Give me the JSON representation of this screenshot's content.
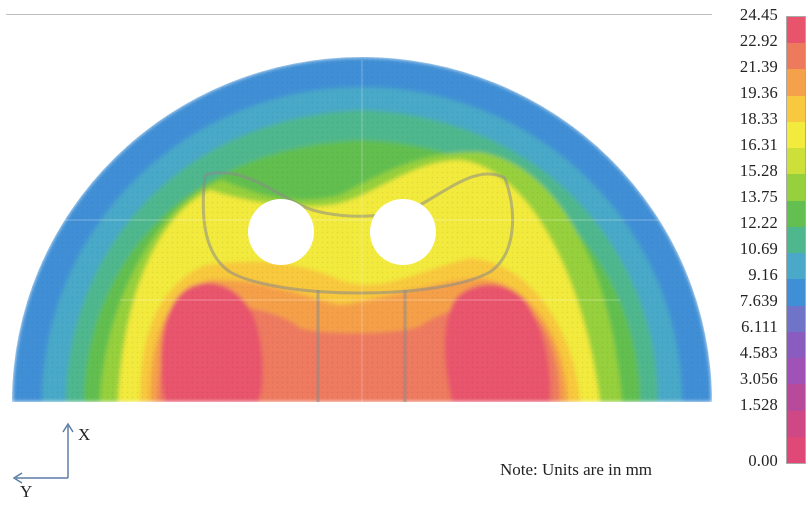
{
  "legend": {
    "values": [
      "24.45",
      "22.92",
      "21.39",
      "19.36",
      "18.33",
      "16.31",
      "15.28",
      "13.75",
      "12.22",
      "10.69",
      "9.16",
      "7.639",
      "6.111",
      "4.583",
      "3.056",
      "1.528",
      "0.00"
    ],
    "colors": [
      "#e8546c",
      "#ee7a5e",
      "#f5a04a",
      "#f8c83e",
      "#f2ea3c",
      "#cde03a",
      "#96d03c",
      "#62bf50",
      "#4fb78e",
      "#4aa9c8",
      "#3f8fd6",
      "#6f74c8",
      "#8a5cc0",
      "#a152b6",
      "#b84a9c",
      "#cf4784",
      "#e04878"
    ]
  },
  "figure": {
    "note": "Note: Units are in mm",
    "axis_x": "X",
    "axis_y": "Y",
    "contour_palette": {
      "outer_blue": "#3f8fd6",
      "cyan": "#4aa9c8",
      "teal": "#4fb78e",
      "green": "#62bf50",
      "lime": "#96d03c",
      "yellow": "#f2ea3c",
      "yellow_orange": "#f8c83e",
      "orange": "#f5a04a",
      "salmon": "#ee7a5e",
      "red": "#e8546c",
      "hole": "#ffffff",
      "outline": "#8a8a8a"
    }
  }
}
